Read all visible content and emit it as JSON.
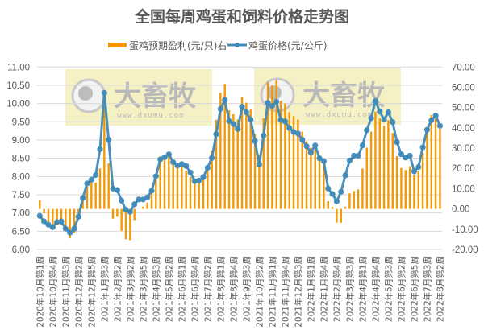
{
  "chart_data": {
    "type": "bar+line",
    "title": "全国每周鸡蛋和饲料价格走势图",
    "legend_position": "top",
    "grid": true,
    "colors": {
      "profit": "#f39800",
      "price": "#3f8ab8",
      "watermark_bg": "#f5eebb"
    },
    "watermark": {
      "logo_text": "大畜牧",
      "url": "www.dxumu.com"
    },
    "left_axis": {
      "ylim": [
        6,
        11
      ],
      "ticks": [
        "6.00",
        "6.50",
        "7.00",
        "7.50",
        "8.00",
        "8.50",
        "9.00",
        "9.50",
        "10.00",
        "10.50",
        "11.00"
      ]
    },
    "right_axis": {
      "ylim": [
        -20,
        70
      ],
      "ticks": [
        "-20.00",
        "-10.00",
        "0.00",
        "10.00",
        "20.00",
        "30.00",
        "40.00",
        "50.00",
        "60.00",
        "70.00"
      ]
    },
    "xticks_every": 3,
    "xtick_labels": [
      "2020年10月第1周",
      "2020年10月第4周",
      "2020年11月第3周",
      "2020年12月第2周",
      "2020年12月第5周",
      "2021年1月第3周",
      "2021年2月第2周",
      "2021年3月第2周",
      "2021年3月第5周",
      "2021年4月第3周",
      "2021年5月第2周",
      "2021年6月第1周",
      "2021年6月第4周",
      "2021年7月第2周",
      "2021年8月第1周",
      "2021年8月第4周",
      "2021年9月第3周",
      "2021年10月第2周",
      "2021年11月第1周",
      "2021年11月第4周",
      "2021年12月第3周",
      "2022年1月第1周",
      "2022年1月第4周",
      "2022年2月第4周",
      "2022年3月第3周",
      "2022年4月第1周",
      "2022年4月第4周",
      "2022年5月第3周",
      "2022年6月第2周",
      "2022年6月第5周",
      "2022年7月第3周",
      "2022年8月第2周"
    ],
    "series": [
      {
        "name": "蛋鸡预期盈利(元/只)右",
        "type": "bar",
        "axis": "right",
        "values": [
          4.4,
          -2.2,
          -8.1,
          -8.1,
          -8.1,
          -8.1,
          -10,
          -14.5,
          -11.8,
          -2.2,
          4.4,
          11,
          13,
          13,
          20,
          50,
          22.5,
          -4.8,
          -3.9,
          -10.8,
          -15,
          -15.4,
          -5.5,
          0,
          1.1,
          3.1,
          7.7,
          15,
          24.3,
          24.9,
          25.6,
          22.3,
          20.3,
          21,
          19,
          15.7,
          13,
          13.7,
          15,
          21,
          28.9,
          44,
          57.3,
          61.7,
          48.7,
          46.7,
          44.1,
          55.3,
          52.4,
          49,
          37,
          26.9,
          44.7,
          62.6,
          60.9,
          63.5,
          53.3,
          52,
          47.7,
          45.8,
          44.1,
          38.1,
          33.5,
          30.2,
          29.2,
          26,
          23.6,
          3.8,
          1,
          -6.8,
          -6.8,
          1.1,
          7.7,
          8.8,
          9.6,
          19.9,
          30.2,
          38.1,
          48,
          44.7,
          41,
          43.8,
          37.5,
          26,
          20.2,
          19.2,
          21,
          16.5,
          18.6,
          27.6,
          38.1,
          46.3,
          45,
          39.7
        ]
      },
      {
        "name": "鸡蛋价格(元/公斤)",
        "type": "line",
        "axis": "left",
        "values": [
          6.92,
          6.77,
          6.68,
          6.61,
          6.75,
          6.77,
          6.57,
          6.46,
          6.57,
          6.9,
          7.41,
          7.81,
          7.91,
          8.04,
          8.75,
          10.29,
          9.01,
          7.67,
          7.63,
          7.34,
          7.09,
          7.03,
          7.24,
          7.37,
          7.37,
          7.43,
          7.61,
          8.01,
          8.47,
          8.53,
          8.61,
          8.39,
          8.3,
          8.34,
          8.29,
          8.11,
          7.87,
          7.89,
          7.98,
          8.24,
          8.51,
          9.16,
          9.85,
          10.1,
          9.52,
          9.44,
          9.3,
          9.91,
          9.76,
          9.56,
          8.97,
          8.33,
          9.12,
          10.02,
          9.93,
          10.05,
          9.55,
          9.51,
          9.33,
          9.22,
          9.18,
          9.01,
          8.83,
          8.66,
          8.85,
          8.5,
          8.42,
          7.67,
          7.52,
          7.32,
          7.58,
          8.03,
          8.44,
          8.57,
          8.57,
          8.85,
          9.27,
          9.6,
          10.07,
          9.78,
          9.56,
          9.76,
          9.49,
          8.94,
          8.61,
          8.52,
          8.57,
          8.14,
          8.26,
          8.8,
          9.28,
          9.54,
          9.67,
          9.39
        ]
      }
    ]
  }
}
